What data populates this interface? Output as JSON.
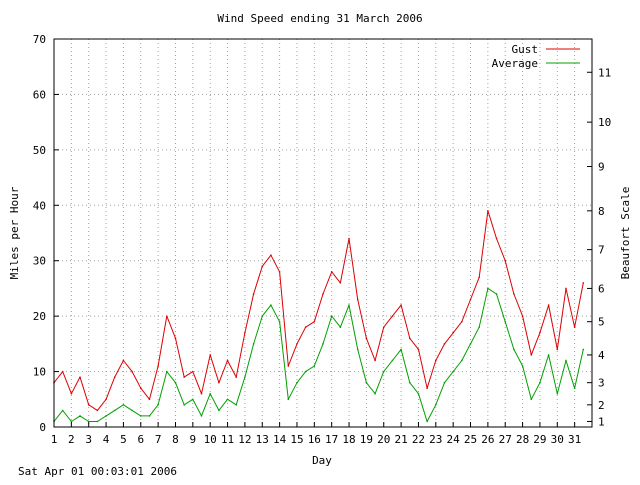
{
  "chart_data": {
    "type": "line",
    "title": "Wind Speed ending 31 March 2006",
    "xlabel": "Day",
    "ylabel": "Miles per Hour",
    "y2label": "Beaufort Scale",
    "footer": "Sat Apr 01 00:03:01 2006",
    "xlim": [
      1,
      32
    ],
    "ylim": [
      0,
      70
    ],
    "x_ticks": [
      1,
      2,
      3,
      4,
      5,
      6,
      7,
      8,
      9,
      10,
      11,
      12,
      13,
      14,
      15,
      16,
      17,
      18,
      19,
      20,
      21,
      22,
      23,
      24,
      25,
      26,
      27,
      28,
      29,
      30,
      31
    ],
    "y_ticks": [
      0,
      10,
      20,
      30,
      40,
      50,
      60,
      70
    ],
    "beaufort_ticks": [
      {
        "label": "1",
        "mph": 1
      },
      {
        "label": "2",
        "mph": 4
      },
      {
        "label": "3",
        "mph": 8
      },
      {
        "label": "4",
        "mph": 13
      },
      {
        "label": "5",
        "mph": 19
      },
      {
        "label": "6",
        "mph": 25
      },
      {
        "label": "7",
        "mph": 32
      },
      {
        "label": "8",
        "mph": 39
      },
      {
        "label": "9",
        "mph": 47
      },
      {
        "label": "10",
        "mph": 55
      },
      {
        "label": "11",
        "mph": 64
      }
    ],
    "grid": true,
    "legend_position": "top-right",
    "series": [
      {
        "name": "Gust",
        "color": "#dd0000",
        "x": [
          1,
          1.5,
          2,
          2.5,
          3,
          3.5,
          4,
          4.5,
          5,
          5.5,
          6,
          6.5,
          7,
          7.5,
          8,
          8.5,
          9,
          9.5,
          10,
          10.5,
          11,
          11.5,
          12,
          12.5,
          13,
          13.5,
          14,
          14.5,
          15,
          15.5,
          16,
          16.5,
          17,
          17.5,
          18,
          18.5,
          19,
          19.5,
          20,
          20.5,
          21,
          21.5,
          22,
          22.5,
          23,
          23.5,
          24,
          24.5,
          25,
          25.5,
          26,
          26.5,
          27,
          27.5,
          28,
          28.5,
          29,
          29.5,
          30,
          30.5,
          31,
          31.5
        ],
        "values": [
          8,
          10,
          6,
          9,
          4,
          3,
          5,
          9,
          12,
          10,
          7,
          5,
          11,
          20,
          16,
          9,
          10,
          6,
          13,
          8,
          12,
          9,
          17,
          24,
          29,
          31,
          28,
          11,
          15,
          18,
          19,
          24,
          28,
          26,
          34,
          23,
          16,
          12,
          18,
          20,
          22,
          16,
          14,
          7,
          12,
          15,
          17,
          19,
          23,
          27,
          39,
          34,
          30,
          24,
          20,
          13,
          17,
          22,
          14,
          25,
          18,
          26
        ]
      },
      {
        "name": "Average",
        "color": "#00a000",
        "x": [
          1,
          1.5,
          2,
          2.5,
          3,
          3.5,
          4,
          4.5,
          5,
          5.5,
          6,
          6.5,
          7,
          7.5,
          8,
          8.5,
          9,
          9.5,
          10,
          10.5,
          11,
          11.5,
          12,
          12.5,
          13,
          13.5,
          14,
          14.5,
          15,
          15.5,
          16,
          16.5,
          17,
          17.5,
          18,
          18.5,
          19,
          19.5,
          20,
          20.5,
          21,
          21.5,
          22,
          22.5,
          23,
          23.5,
          24,
          24.5,
          25,
          25.5,
          26,
          26.5,
          27,
          27.5,
          28,
          28.5,
          29,
          29.5,
          30,
          30.5,
          31,
          31.5
        ],
        "values": [
          1,
          3,
          1,
          2,
          1,
          1,
          2,
          3,
          4,
          3,
          2,
          2,
          4,
          10,
          8,
          4,
          5,
          2,
          6,
          3,
          5,
          4,
          9,
          15,
          20,
          22,
          19,
          5,
          8,
          10,
          11,
          15,
          20,
          18,
          22,
          14,
          8,
          6,
          10,
          12,
          14,
          8,
          6,
          1,
          4,
          8,
          10,
          12,
          15,
          18,
          25,
          24,
          19,
          14,
          11,
          5,
          8,
          13,
          6,
          12,
          7,
          14
        ]
      }
    ]
  }
}
